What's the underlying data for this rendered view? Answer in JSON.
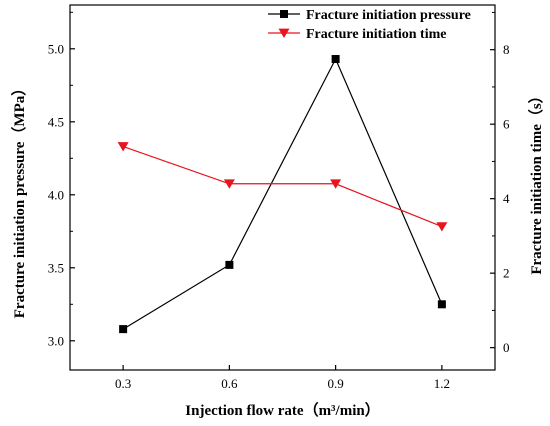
{
  "chart_data": {
    "type": "line",
    "xlabel": "Injection flow rate（m³/min）",
    "x": [
      0.3,
      0.6,
      0.9,
      1.2
    ],
    "xticks": [
      "0.3",
      "0.6",
      "0.9",
      "1.2"
    ],
    "xlim": [
      0.15,
      1.35
    ],
    "y_left": {
      "label": "Fracture initiation pressure（MPa）",
      "ylim": [
        2.8,
        5.3
      ],
      "ticks": [
        "3.0",
        "3.5",
        "4.0",
        "4.5",
        "5.0"
      ]
    },
    "y_right": {
      "label": "Fracture initiation time（s）",
      "ylim": [
        -0.6,
        9.2
      ],
      "ticks": [
        "0",
        "2",
        "4",
        "6",
        "8"
      ]
    },
    "series": [
      {
        "name": "Fracture initiation pressure",
        "axis": "left",
        "marker": "square",
        "color": "#000000",
        "values": [
          3.08,
          3.52,
          4.93,
          3.25
        ]
      },
      {
        "name": "Fracture initiation time",
        "axis": "right",
        "marker": "triangle-down",
        "color": "#e8141e",
        "values": [
          5.4,
          4.4,
          4.4,
          3.25
        ]
      }
    ],
    "legend": "top-right",
    "grid": false
  }
}
